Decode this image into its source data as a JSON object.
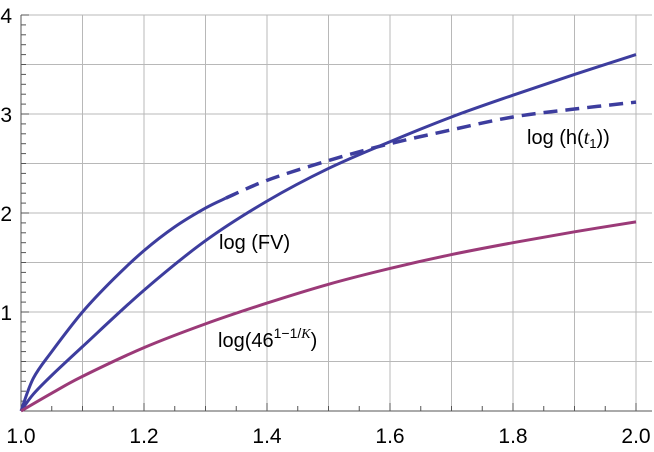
{
  "chart_data": {
    "type": "line",
    "title": "",
    "xlabel": "",
    "ylabel": "",
    "xlim": [
      1.0,
      2.0
    ],
    "ylim": [
      0,
      4
    ],
    "grid": true,
    "x_ticks": [
      "1.0",
      "1.2",
      "1.4",
      "1.6",
      "1.8",
      "2.0"
    ],
    "y_ticks": [
      "1",
      "2",
      "3",
      "4"
    ],
    "series": [
      {
        "name": "log (h(t1))",
        "label_main": "log (h(",
        "label_var": "t",
        "label_sub": "1",
        "label_end": "))",
        "color": "#3d3d9e",
        "style": "solid then dashed",
        "dash_from_x": 1.333,
        "x": [
          1.0,
          1.02,
          1.05,
          1.1,
          1.15,
          1.2,
          1.25,
          1.3,
          1.333,
          1.4,
          1.5,
          1.6,
          1.7,
          1.8,
          1.9,
          2.0
        ],
        "y": [
          0,
          0.33,
          0.6,
          1.0,
          1.33,
          1.62,
          1.86,
          2.05,
          2.15,
          2.33,
          2.53,
          2.7,
          2.84,
          2.97,
          3.05,
          3.12
        ]
      },
      {
        "name": "log (FV)",
        "color": "#3d3d9e",
        "style": "solid",
        "x": [
          1.0,
          1.02,
          1.05,
          1.1,
          1.2,
          1.3,
          1.4,
          1.5,
          1.6,
          1.7,
          1.8,
          1.9,
          2.0
        ],
        "y": [
          0,
          0.17,
          0.36,
          0.65,
          1.22,
          1.72,
          2.12,
          2.45,
          2.72,
          2.97,
          3.19,
          3.4,
          3.6
        ]
      },
      {
        "name": "log(46^(1-1/K))",
        "label_main": "log(46",
        "label_sup": "1−1/",
        "label_sup_var": "K",
        "label_end": ")",
        "color": "#9b3a78",
        "style": "solid",
        "x": [
          1.0,
          1.05,
          1.1,
          1.2,
          1.3,
          1.4,
          1.5,
          1.6,
          1.7,
          1.8,
          1.9,
          2.0
        ],
        "y": [
          0,
          0.18,
          0.35,
          0.64,
          0.88,
          1.09,
          1.28,
          1.44,
          1.58,
          1.7,
          1.81,
          1.91
        ]
      }
    ]
  }
}
